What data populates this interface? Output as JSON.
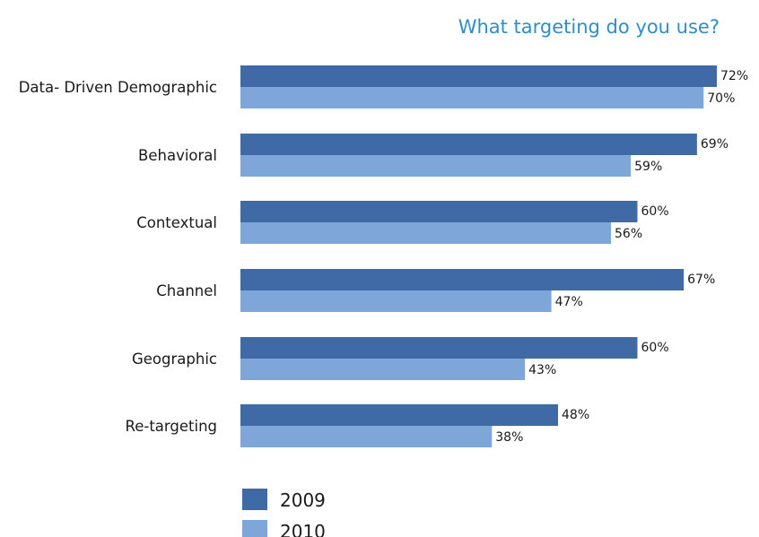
{
  "chart_data": {
    "type": "bar",
    "orientation": "horizontal",
    "title": "What targeting do you use?",
    "categories": [
      "Data- Driven Demographic",
      "Behavioral",
      "Contextual",
      "Channel",
      "Geographic",
      "Re-targeting"
    ],
    "series": [
      {
        "name": "2009",
        "values": [
          72,
          69,
          60,
          67,
          60,
          48
        ],
        "labels": [
          "72%",
          "69%",
          "60%",
          "67%",
          "60%",
          "48%"
        ],
        "color": "#3f6aa6"
      },
      {
        "name": "2010",
        "values": [
          70,
          59,
          56,
          47,
          43,
          38
        ],
        "labels": [
          "70%",
          "59%",
          "56%",
          "47%",
          "43%",
          "38%"
        ],
        "color": "#7ea6d8"
      }
    ],
    "xlim": [
      0,
      72
    ],
    "unit": "%",
    "grid": false,
    "legend_position": "bottom-left",
    "title_color": "#2f8ec6"
  }
}
